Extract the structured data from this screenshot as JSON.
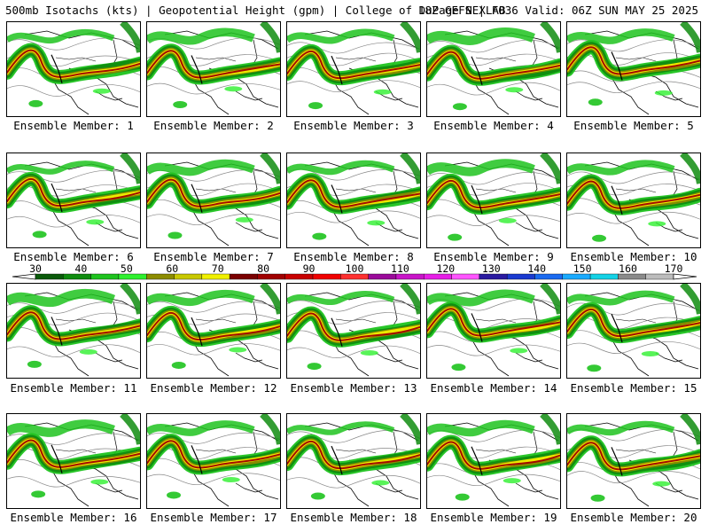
{
  "header": {
    "left": "500mb Isotachs (kts) | Geopotential Height (gpm) | College of DuPage NEXLAB",
    "right": "18Z GEFS | F036 Valid: 06Z SUN MAY 25 2025"
  },
  "members": [
    {
      "label": "Ensemble Member: 1"
    },
    {
      "label": "Ensemble Member: 2"
    },
    {
      "label": "Ensemble Member: 3"
    },
    {
      "label": "Ensemble Member: 4"
    },
    {
      "label": "Ensemble Member: 5"
    },
    {
      "label": "Ensemble Member: 6"
    },
    {
      "label": "Ensemble Member: 7"
    },
    {
      "label": "Ensemble Member: 8"
    },
    {
      "label": "Ensemble Member: 9"
    },
    {
      "label": "Ensemble Member: 10"
    },
    {
      "label": "Ensemble Member: 11"
    },
    {
      "label": "Ensemble Member: 12"
    },
    {
      "label": "Ensemble Member: 13"
    },
    {
      "label": "Ensemble Member: 14"
    },
    {
      "label": "Ensemble Member: 15"
    },
    {
      "label": "Ensemble Member: 16"
    },
    {
      "label": "Ensemble Member: 17"
    },
    {
      "label": "Ensemble Member: 18"
    },
    {
      "label": "Ensemble Member: 19"
    },
    {
      "label": "Ensemble Member: 20"
    }
  ],
  "colorbar": {
    "labels": [
      "30",
      "40",
      "50",
      "60",
      "70",
      "80",
      "90",
      "100",
      "110",
      "120",
      "130",
      "140",
      "150",
      "160",
      "170"
    ],
    "colors": [
      "#0a5a0a",
      "#0f8c0f",
      "#1ec31e",
      "#2ef02e",
      "#8c8c00",
      "#c8c800",
      "#f0f000",
      "#7a0000",
      "#a00000",
      "#c80000",
      "#f00000",
      "#ff3030",
      "#9a0a9a",
      "#c814c8",
      "#e61ee6",
      "#ff55ff",
      "#2a1aa0",
      "#1a3ad0",
      "#1a6af0",
      "#1aaaff",
      "#14d2e6",
      "#8a8a8a",
      "#bcbcbc"
    ]
  }
}
